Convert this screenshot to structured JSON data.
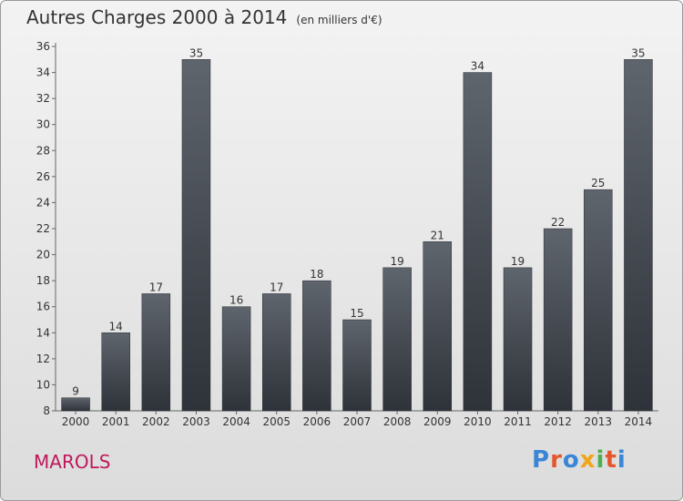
{
  "chart_data": {
    "type": "bar",
    "title": "Autres Charges 2000 à 2014",
    "subtitle": "(en milliers d'€)",
    "categories": [
      "2000",
      "2001",
      "2002",
      "2003",
      "2004",
      "2005",
      "2006",
      "2007",
      "2008",
      "2009",
      "2010",
      "2011",
      "2012",
      "2013",
      "2014"
    ],
    "values": [
      9,
      14,
      17,
      35,
      16,
      17,
      18,
      15,
      19,
      21,
      34,
      19,
      22,
      25,
      35
    ],
    "ylim": [
      8,
      36
    ],
    "yticks": [
      8,
      10,
      12,
      14,
      16,
      18,
      20,
      22,
      24,
      26,
      28,
      30,
      32,
      34,
      36
    ],
    "grid": false,
    "bar_color_top": "#5f656d",
    "bar_color_bottom": "#2e3239"
  },
  "footer": {
    "city": "MAROLS",
    "brand": "Proxiti",
    "brand_colors": [
      "#3a86d6",
      "#e4572e",
      "#3a86d6",
      "#f2a51a",
      "#4caf50",
      "#e4572e",
      "#3a86d6"
    ]
  }
}
